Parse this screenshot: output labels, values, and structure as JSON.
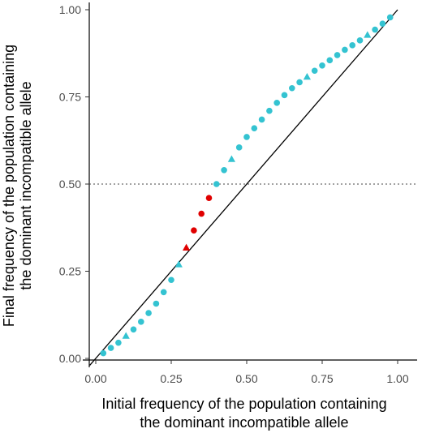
{
  "chart_data": {
    "type": "scatter",
    "xlabel": [
      "Initial frequency of the population containing",
      "the dominant incompatible allele"
    ],
    "ylabel": [
      "Final frequency of the population containing",
      "the dominant incompatible allele"
    ],
    "xlim": [
      0,
      1
    ],
    "ylim": [
      0,
      1
    ],
    "x_ticks": [
      "0.00",
      "0.25",
      "0.50",
      "0.75",
      "1.00"
    ],
    "y_ticks": [
      "0.00",
      "0.25",
      "0.50",
      "0.75",
      "1.00"
    ],
    "reference_lines": [
      {
        "type": "diagonal",
        "description": "y = x",
        "style": "solid",
        "color": "#000000"
      },
      {
        "type": "horizontal",
        "y": 0.5,
        "style": "dotted",
        "color": "#444444"
      }
    ],
    "grid": false,
    "legend": "none",
    "colors": {
      "cyan": "#34c3d1",
      "red": "#e00000"
    },
    "points": [
      {
        "x": 0.025,
        "y": 0.015,
        "shape": "circle",
        "color": "cyan"
      },
      {
        "x": 0.05,
        "y": 0.03,
        "shape": "circle",
        "color": "cyan"
      },
      {
        "x": 0.075,
        "y": 0.045,
        "shape": "circle",
        "color": "cyan"
      },
      {
        "x": 0.1,
        "y": 0.065,
        "shape": "triangle",
        "color": "cyan"
      },
      {
        "x": 0.125,
        "y": 0.083,
        "shape": "circle",
        "color": "cyan"
      },
      {
        "x": 0.15,
        "y": 0.105,
        "shape": "circle",
        "color": "cyan"
      },
      {
        "x": 0.175,
        "y": 0.13,
        "shape": "circle",
        "color": "cyan"
      },
      {
        "x": 0.2,
        "y": 0.157,
        "shape": "circle",
        "color": "cyan"
      },
      {
        "x": 0.225,
        "y": 0.19,
        "shape": "circle",
        "color": "cyan"
      },
      {
        "x": 0.25,
        "y": 0.225,
        "shape": "circle",
        "color": "cyan"
      },
      {
        "x": 0.275,
        "y": 0.27,
        "shape": "triangle",
        "color": "cyan"
      },
      {
        "x": 0.3,
        "y": 0.318,
        "shape": "triangle",
        "color": "red"
      },
      {
        "x": 0.325,
        "y": 0.367,
        "shape": "circle",
        "color": "red"
      },
      {
        "x": 0.35,
        "y": 0.415,
        "shape": "circle",
        "color": "red"
      },
      {
        "x": 0.375,
        "y": 0.46,
        "shape": "circle",
        "color": "red"
      },
      {
        "x": 0.4,
        "y": 0.5,
        "shape": "circle",
        "color": "cyan"
      },
      {
        "x": 0.425,
        "y": 0.54,
        "shape": "circle",
        "color": "cyan"
      },
      {
        "x": 0.45,
        "y": 0.572,
        "shape": "triangle",
        "color": "cyan"
      },
      {
        "x": 0.475,
        "y": 0.605,
        "shape": "circle",
        "color": "cyan"
      },
      {
        "x": 0.5,
        "y": 0.635,
        "shape": "circle",
        "color": "cyan"
      },
      {
        "x": 0.525,
        "y": 0.66,
        "shape": "circle",
        "color": "cyan"
      },
      {
        "x": 0.55,
        "y": 0.685,
        "shape": "circle",
        "color": "cyan"
      },
      {
        "x": 0.575,
        "y": 0.71,
        "shape": "circle",
        "color": "cyan"
      },
      {
        "x": 0.6,
        "y": 0.733,
        "shape": "circle",
        "color": "cyan"
      },
      {
        "x": 0.625,
        "y": 0.755,
        "shape": "circle",
        "color": "cyan"
      },
      {
        "x": 0.65,
        "y": 0.775,
        "shape": "circle",
        "color": "cyan"
      },
      {
        "x": 0.675,
        "y": 0.792,
        "shape": "circle",
        "color": "cyan"
      },
      {
        "x": 0.7,
        "y": 0.808,
        "shape": "triangle",
        "color": "cyan"
      },
      {
        "x": 0.725,
        "y": 0.825,
        "shape": "circle",
        "color": "cyan"
      },
      {
        "x": 0.75,
        "y": 0.84,
        "shape": "circle",
        "color": "cyan"
      },
      {
        "x": 0.775,
        "y": 0.855,
        "shape": "circle",
        "color": "cyan"
      },
      {
        "x": 0.8,
        "y": 0.87,
        "shape": "circle",
        "color": "cyan"
      },
      {
        "x": 0.825,
        "y": 0.885,
        "shape": "circle",
        "color": "cyan"
      },
      {
        "x": 0.85,
        "y": 0.898,
        "shape": "circle",
        "color": "cyan"
      },
      {
        "x": 0.875,
        "y": 0.912,
        "shape": "circle",
        "color": "cyan"
      },
      {
        "x": 0.9,
        "y": 0.928,
        "shape": "triangle",
        "color": "cyan"
      },
      {
        "x": 0.925,
        "y": 0.943,
        "shape": "circle",
        "color": "cyan"
      },
      {
        "x": 0.95,
        "y": 0.96,
        "shape": "circle",
        "color": "cyan"
      },
      {
        "x": 0.975,
        "y": 0.978,
        "shape": "circle",
        "color": "cyan"
      }
    ]
  }
}
